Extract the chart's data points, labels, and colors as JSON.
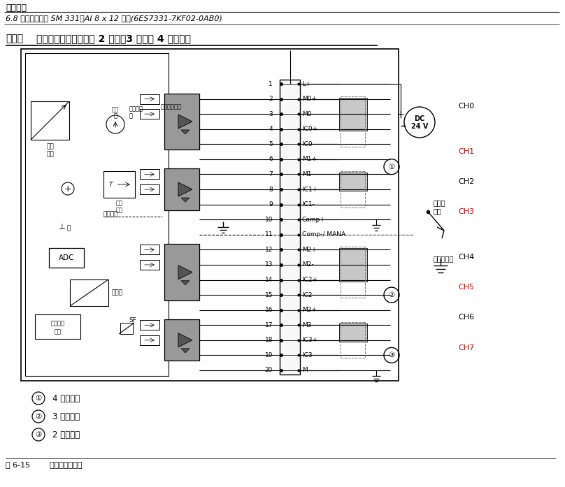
{
  "title_main": "模拟模块",
  "subtitle": "6.8 模拟输入模块 SM 331；AI 8 x 12 位；(6ES7331-7KF02-0AB0)",
  "heading_pre": "接线：",
  "heading_post": "电阻传感器或温度计的 2 线制、3 线制和 4 线制连接",
  "pin_numbers": [
    "1",
    "2",
    "3",
    "4",
    "5",
    "6",
    "7",
    "8",
    "9",
    "10",
    "11",
    "12",
    "13",
    "14",
    "15",
    "16",
    "17",
    "18",
    "19",
    "20"
  ],
  "pin_names": [
    "L+",
    "M0+",
    "M0-",
    "C0+",
    "C0-",
    "M1+",
    "M1-",
    "C1+",
    "C1-",
    "Comp+",
    "Comp-/MANA",
    "M2+",
    "M2-",
    "C2+",
    "C2-",
    "M3+",
    "M3-",
    "C3+",
    "C3-",
    "M"
  ],
  "ch_labels": [
    "CH0",
    "CH1",
    "CH2",
    "CH3",
    "CH4",
    "CH5",
    "CH6",
    "CH7"
  ],
  "ch_red": [
    false,
    true,
    false,
    true,
    false,
    true,
    false,
    true
  ],
  "legend": [
    {
      "sym": "①",
      "text": "4 线制连接"
    },
    {
      "sym": "②",
      "text": "3 线制连接"
    },
    {
      "sym": "③",
      "text": "2 线制连接"
    }
  ],
  "fig_caption": "图 6-15        方框图和端子图",
  "bg": "#ffffff",
  "gray_block": "#999999",
  "gray_line": "#bbbbbb",
  "ch_red_color": "#cc0000"
}
